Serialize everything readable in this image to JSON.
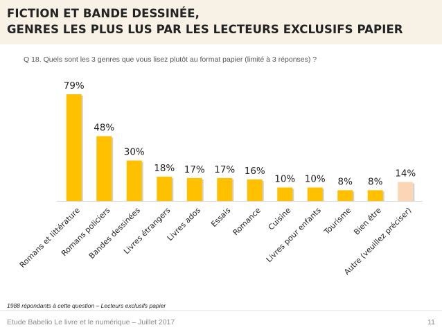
{
  "header": {
    "title_line1": "FICTION ET BANDE DESSINÉE,",
    "title_line2": "GENRES LES PLUS LUS PAR LES LECTEURS EXCLUSIFS PAPIER"
  },
  "question": "Q 18. Quels sont les 3 genres que vous lisez plutôt au format papier (limité à 3 réponses) ?",
  "footnote": "1988 répondants à cette question – Lecteurs exclusifs papier",
  "footer": {
    "source": "Etude Babelio Le livre et le numérique – Juillet 2017",
    "page_number": "11"
  },
  "colors": {
    "bar": "#ffc000",
    "bar_highlight": "#fcd5b4",
    "header_band": "#f7f1e6",
    "axis": "#d9d9d9"
  },
  "chart_data": {
    "type": "bar",
    "title": "",
    "xlabel": "",
    "ylabel": "",
    "ylim": [
      0,
      80
    ],
    "grid": false,
    "categories": [
      "Romans et littérature",
      "Romans policiers",
      "Bandes dessinées",
      "Livres étrangers",
      "Livres ados",
      "Essais",
      "Romance",
      "Cuisine",
      "Livres pour enfants",
      "Tourisme",
      "Bien être",
      "Autre (veuillez préciser)"
    ],
    "values": [
      79,
      48,
      30,
      18,
      17,
      17,
      16,
      10,
      10,
      8,
      8,
      14
    ],
    "value_labels": [
      "79%",
      "48%",
      "30%",
      "18%",
      "17%",
      "17%",
      "16%",
      "10%",
      "10%",
      "8%",
      "8%",
      "14%"
    ],
    "highlighted_index": 11
  }
}
